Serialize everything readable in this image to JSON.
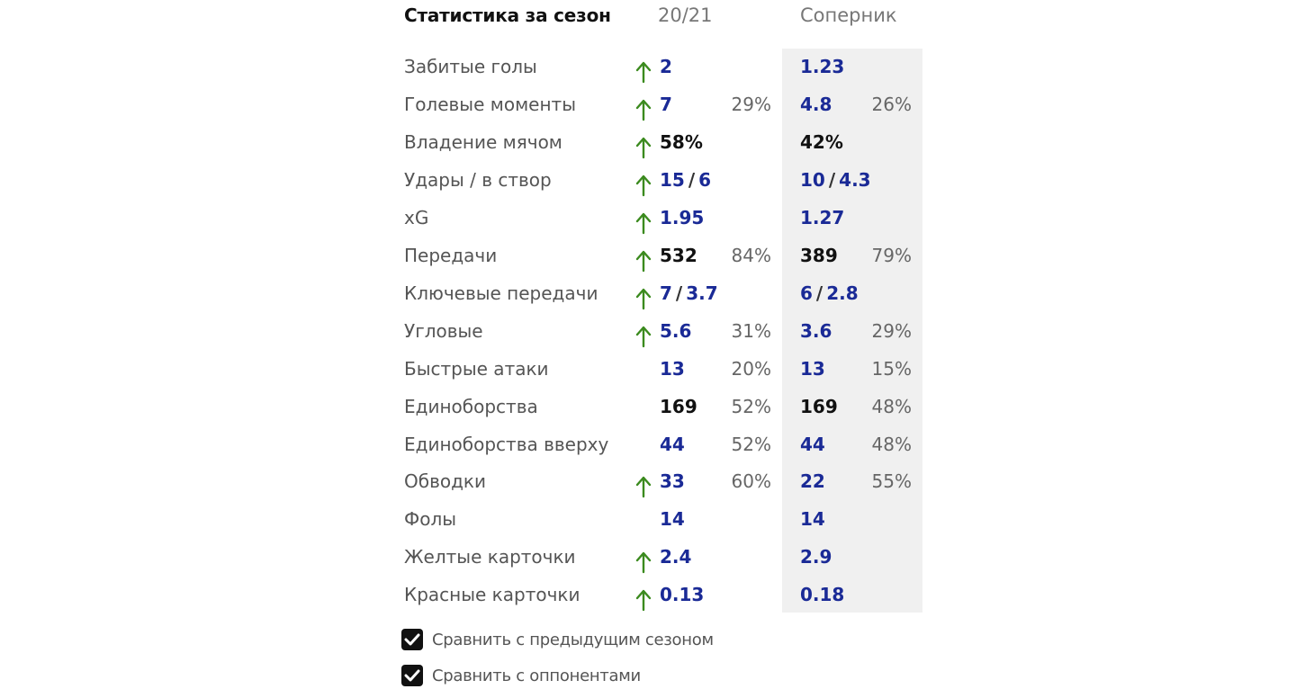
{
  "header": {
    "title": "Статистика за сезон",
    "season": "20/21",
    "opponent": "Соперник"
  },
  "colors": {
    "arrow": "#3b8a1e",
    "value_blue": "#1a2a96",
    "value_black": "#111111",
    "opponent_bg": "#f0f0f0"
  },
  "rows": [
    {
      "label": "Забитые голы",
      "up": true,
      "value": "2",
      "pct": "",
      "opp": "1.23",
      "opp_pct": ""
    },
    {
      "label": "Голевые моменты",
      "up": true,
      "value": "7",
      "pct": "29%",
      "opp": "4.8",
      "opp_pct": "26%"
    },
    {
      "label": "Владение мячом",
      "up": true,
      "value": "58%",
      "pct": "",
      "opp": "42%",
      "opp_pct": "",
      "black": true
    },
    {
      "label": "Удары / в створ",
      "up": true,
      "value_a": "15",
      "value_b": "6",
      "pct": "",
      "opp_a": "10",
      "opp_b": "4.3",
      "opp_pct": ""
    },
    {
      "label": "xG",
      "up": true,
      "value": "1.95",
      "pct": "",
      "opp": "1.27",
      "opp_pct": ""
    },
    {
      "label": "Передачи",
      "up": true,
      "value": "532",
      "pct": "84%",
      "opp": "389",
      "opp_pct": "79%",
      "black": true
    },
    {
      "label": "Ключевые передачи",
      "up": true,
      "value_a": "7",
      "value_b": "3.7",
      "pct": "",
      "opp_a": "6",
      "opp_b": "2.8",
      "opp_pct": ""
    },
    {
      "label": "Угловые",
      "up": true,
      "value": "5.6",
      "pct": "31%",
      "opp": "3.6",
      "opp_pct": "29%"
    },
    {
      "label": "Быстрые атаки",
      "up": false,
      "value": "13",
      "pct": "20%",
      "opp": "13",
      "opp_pct": "15%"
    },
    {
      "label": "Единоборства",
      "up": false,
      "value": "169",
      "pct": "52%",
      "opp": "169",
      "opp_pct": "48%",
      "black": true
    },
    {
      "label": "Единоборства вверху",
      "up": false,
      "value": "44",
      "pct": "52%",
      "opp": "44",
      "opp_pct": "48%"
    },
    {
      "label": "Обводки",
      "up": true,
      "value": "33",
      "pct": "60%",
      "opp": "22",
      "opp_pct": "55%"
    },
    {
      "label": "Фолы",
      "up": false,
      "value": "14",
      "pct": "",
      "opp": "14",
      "opp_pct": ""
    },
    {
      "label": "Желтые карточки",
      "up": true,
      "value": "2.4",
      "pct": "",
      "opp": "2.9",
      "opp_pct": ""
    },
    {
      "label": "Красные карточки",
      "up": true,
      "value": "0.13",
      "pct": "",
      "opp": "0.18",
      "opp_pct": ""
    }
  ],
  "checkboxes": [
    {
      "label": "Сравнить с предыдущим сезоном",
      "checked": true
    },
    {
      "label": "Сравнить с оппонентами",
      "checked": true
    }
  ]
}
